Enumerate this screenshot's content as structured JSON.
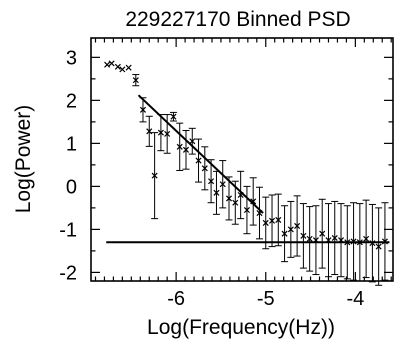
{
  "chart_data": {
    "type": "scatter",
    "title": "229227170 Binned PSD",
    "xlabel": "Log(Frequency(Hz))",
    "ylabel": "Log(Power)",
    "xlim": [
      -6.95,
      -3.58
    ],
    "ylim": [
      -2.2,
      3.45
    ],
    "x_ticks": [
      -6,
      -5,
      -4
    ],
    "y_ticks": [
      -2,
      -1,
      0,
      1,
      2,
      3
    ],
    "grid": false,
    "legend": "none",
    "series": [
      {
        "marker": "x",
        "points": [
          {
            "x": -6.77,
            "y": 2.83,
            "err": 0
          },
          {
            "x": -6.72,
            "y": 2.86,
            "err": 0
          },
          {
            "x": -6.65,
            "y": 2.78,
            "err": 0
          },
          {
            "x": -6.6,
            "y": 2.72,
            "err": 0
          },
          {
            "x": -6.53,
            "y": 2.76,
            "err": 0
          },
          {
            "x": -6.45,
            "y": 2.47,
            "err": 0.13
          },
          {
            "x": -6.37,
            "y": 1.78,
            "err": 0.28
          },
          {
            "x": -6.3,
            "y": 1.28,
            "err": 0.35
          },
          {
            "x": -6.24,
            "y": 0.25,
            "err": 1.0
          },
          {
            "x": -6.17,
            "y": 1.25,
            "err": 0.42
          },
          {
            "x": -6.1,
            "y": 1.22,
            "err": 0.45
          },
          {
            "x": -6.03,
            "y": 1.62,
            "err": 0.1
          },
          {
            "x": -5.96,
            "y": 0.92,
            "err": 0.55
          },
          {
            "x": -5.89,
            "y": 0.85,
            "err": 0.45
          },
          {
            "x": -5.82,
            "y": 1.05,
            "err": 0.3
          },
          {
            "x": -5.75,
            "y": 0.6,
            "err": 0.5
          },
          {
            "x": -5.68,
            "y": 0.42,
            "err": 0.5
          },
          {
            "x": -5.61,
            "y": 0.12,
            "err": 0.5
          },
          {
            "x": -5.55,
            "y": -0.15,
            "err": 0.5
          },
          {
            "x": -5.48,
            "y": 0.05,
            "err": 0.55
          },
          {
            "x": -5.41,
            "y": -0.28,
            "err": 0.5
          },
          {
            "x": -5.34,
            "y": -0.38,
            "err": 0.5
          },
          {
            "x": -5.28,
            "y": -0.2,
            "err": 0.55
          },
          {
            "x": -5.21,
            "y": -0.55,
            "err": 0.55
          },
          {
            "x": -5.14,
            "y": -0.35,
            "err": 0.55
          },
          {
            "x": -5.07,
            "y": -0.62,
            "err": 0.6
          },
          {
            "x": -5.0,
            "y": -0.85,
            "err": 0.6
          },
          {
            "x": -4.93,
            "y": -0.8,
            "err": 0.6
          },
          {
            "x": -4.86,
            "y": -0.78,
            "err": 0.6
          },
          {
            "x": -4.79,
            "y": -1.1,
            "err": 0.65
          },
          {
            "x": -4.72,
            "y": -1.0,
            "err": 0.65
          },
          {
            "x": -4.65,
            "y": -0.92,
            "err": 0.7
          },
          {
            "x": -4.58,
            "y": -1.15,
            "err": 0.75
          },
          {
            "x": -4.51,
            "y": -1.22,
            "err": 0.75
          },
          {
            "x": -4.44,
            "y": -1.25,
            "err": 0.8
          },
          {
            "x": -4.37,
            "y": -1.1,
            "err": 0.8
          },
          {
            "x": -4.3,
            "y": -1.25,
            "err": 0.85
          },
          {
            "x": -4.23,
            "y": -1.2,
            "err": 0.85
          },
          {
            "x": -4.16,
            "y": -1.25,
            "err": 0.85
          },
          {
            "x": -4.09,
            "y": -1.3,
            "err": 0.85
          },
          {
            "x": -4.02,
            "y": -1.28,
            "err": 0.9
          },
          {
            "x": -3.95,
            "y": -1.3,
            "err": 0.9
          },
          {
            "x": -3.88,
            "y": -1.22,
            "err": 0.9
          },
          {
            "x": -3.81,
            "y": -1.32,
            "err": 0.9
          },
          {
            "x": -3.74,
            "y": -1.4,
            "err": 0.9
          },
          {
            "x": -3.67,
            "y": -1.28,
            "err": 0.9
          }
        ]
      }
    ],
    "fit_lines": [
      {
        "x1": -6.42,
        "y1": 2.12,
        "x2": -5.03,
        "y2": -0.62
      },
      {
        "x1": -6.78,
        "y1": -1.3,
        "x2": -3.62,
        "y2": -1.3
      }
    ]
  }
}
